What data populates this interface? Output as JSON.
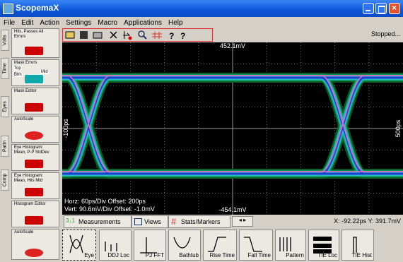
{
  "window": {
    "title": "ScopemaX"
  },
  "menu": [
    "File",
    "Edit",
    "Action",
    "Settings",
    "Macro",
    "Applications",
    "Help"
  ],
  "side_tabs": [
    "Volts",
    "Time",
    "Eyes",
    "Pattn",
    "Comp"
  ],
  "side_buttons": [
    "Hits, Passes All Errors",
    "Mask Errors",
    "Mask Editor",
    "AutoScale",
    "Eye Histogram: Mean, P-P StdDev",
    "Eye Histogram: Mean, Hits Mid",
    "Histogram Editor",
    "AutoScale"
  ],
  "mask_regions": [
    "Top",
    "Btm",
    "Mid"
  ],
  "status": "Stopped...",
  "display": {
    "top_label": "452.1mV",
    "bottom_label": "-454.1mV",
    "left_label": "-100ps",
    "right_label": "500ps",
    "horz": "Horz: 60ps/Div  Offset: 200ps",
    "vert": "Vert: 90.6mV/Div  Offset: -1.0mV"
  },
  "tabs": [
    "Measurements",
    "Views",
    "Stats/Markers"
  ],
  "cursor": "X: -92.22ps Y: 391.7mV",
  "tools": [
    "Eye",
    "DDJ Loc",
    "PJ FFT",
    "Bathtub",
    "Rise Time",
    "Fall Time",
    "Pattern",
    "TIE Loc",
    "TIE Hist"
  ]
}
